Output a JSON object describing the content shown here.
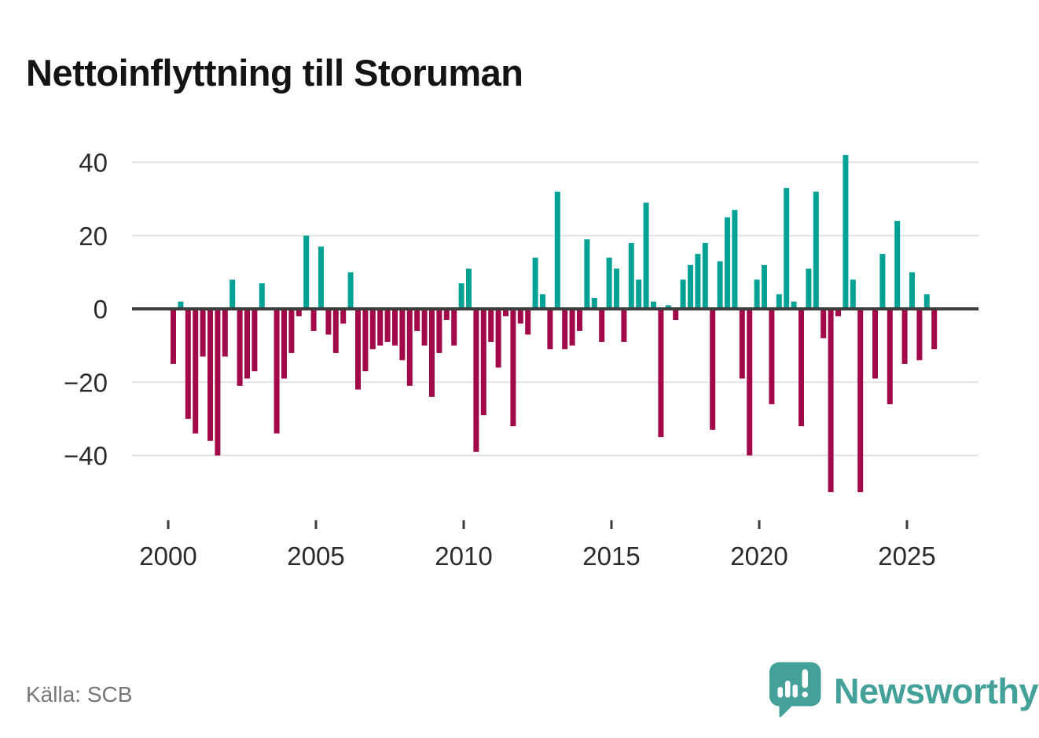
{
  "title": "Nettoinflyttning till Storuman",
  "source": "Källa: SCB",
  "branding": {
    "wordmark": "Newsworthy",
    "logo_icon": "newsworthy-speech-bubble-bar-chart-icon",
    "brand_color": "#44a19a"
  },
  "colors": {
    "positive": "#00a296",
    "negative": "#a2094a",
    "axis": "#3d3d3d",
    "gridline": "#e3e3e3",
    "tick": "#3a3a3a",
    "tick_label": "#2b2b2b",
    "source_text": "#767676"
  },
  "chart_data": {
    "type": "bar",
    "title": "Nettoinflyttning till Storuman",
    "xlabel": "",
    "ylabel": "",
    "frequency": "quarterly",
    "unit": "persons (net migration per quarter)",
    "grid": "horizontal",
    "y_ticks": [
      40,
      20,
      0,
      -20,
      -40
    ],
    "ylim": [
      -55,
      46
    ],
    "x_tick_years": [
      2000,
      2005,
      2010,
      2015,
      2020,
      2025
    ],
    "series": [
      {
        "name": "Nettoinflyttning",
        "points": [
          {
            "q": "2000Q1",
            "v": -15
          },
          {
            "q": "2000Q2",
            "v": 2
          },
          {
            "q": "2000Q3",
            "v": -30
          },
          {
            "q": "2000Q4",
            "v": -34
          },
          {
            "q": "2001Q1",
            "v": -13
          },
          {
            "q": "2001Q2",
            "v": -36
          },
          {
            "q": "2001Q3",
            "v": -40
          },
          {
            "q": "2001Q4",
            "v": -13
          },
          {
            "q": "2002Q1",
            "v": 8
          },
          {
            "q": "2002Q2",
            "v": -21
          },
          {
            "q": "2002Q3",
            "v": -19
          },
          {
            "q": "2002Q4",
            "v": -17
          },
          {
            "q": "2003Q1",
            "v": 7
          },
          {
            "q": "2003Q2",
            "v": 0
          },
          {
            "q": "2003Q3",
            "v": -34
          },
          {
            "q": "2003Q4",
            "v": -19
          },
          {
            "q": "2004Q1",
            "v": -12
          },
          {
            "q": "2004Q2",
            "v": -2
          },
          {
            "q": "2004Q3",
            "v": 20
          },
          {
            "q": "2004Q4",
            "v": -6
          },
          {
            "q": "2005Q1",
            "v": 17
          },
          {
            "q": "2005Q2",
            "v": -7
          },
          {
            "q": "2005Q3",
            "v": -12
          },
          {
            "q": "2005Q4",
            "v": -4
          },
          {
            "q": "2006Q1",
            "v": 10
          },
          {
            "q": "2006Q2",
            "v": -22
          },
          {
            "q": "2006Q3",
            "v": -17
          },
          {
            "q": "2006Q4",
            "v": -11
          },
          {
            "q": "2007Q1",
            "v": -10
          },
          {
            "q": "2007Q2",
            "v": -9
          },
          {
            "q": "2007Q3",
            "v": -10
          },
          {
            "q": "2007Q4",
            "v": -14
          },
          {
            "q": "2008Q1",
            "v": -21
          },
          {
            "q": "2008Q2",
            "v": -6
          },
          {
            "q": "2008Q3",
            "v": -10
          },
          {
            "q": "2008Q4",
            "v": -24
          },
          {
            "q": "2009Q1",
            "v": -12
          },
          {
            "q": "2009Q2",
            "v": -3
          },
          {
            "q": "2009Q3",
            "v": -10
          },
          {
            "q": "2009Q4",
            "v": 7
          },
          {
            "q": "2010Q1",
            "v": 11
          },
          {
            "q": "2010Q2",
            "v": -39
          },
          {
            "q": "2010Q3",
            "v": -29
          },
          {
            "q": "2010Q4",
            "v": -9
          },
          {
            "q": "2011Q1",
            "v": -16
          },
          {
            "q": "2011Q2",
            "v": -2
          },
          {
            "q": "2011Q3",
            "v": -32
          },
          {
            "q": "2011Q4",
            "v": -4
          },
          {
            "q": "2012Q1",
            "v": -7
          },
          {
            "q": "2012Q2",
            "v": 14
          },
          {
            "q": "2012Q3",
            "v": 4
          },
          {
            "q": "2012Q4",
            "v": -11
          },
          {
            "q": "2013Q1",
            "v": 32
          },
          {
            "q": "2013Q2",
            "v": -11
          },
          {
            "q": "2013Q3",
            "v": -10
          },
          {
            "q": "2013Q4",
            "v": -6
          },
          {
            "q": "2014Q1",
            "v": 19
          },
          {
            "q": "2014Q2",
            "v": 3
          },
          {
            "q": "2014Q3",
            "v": -9
          },
          {
            "q": "2014Q4",
            "v": 14
          },
          {
            "q": "2015Q1",
            "v": 11
          },
          {
            "q": "2015Q2",
            "v": -9
          },
          {
            "q": "2015Q3",
            "v": 18
          },
          {
            "q": "2015Q4",
            "v": 8
          },
          {
            "q": "2016Q1",
            "v": 29
          },
          {
            "q": "2016Q2",
            "v": 2
          },
          {
            "q": "2016Q3",
            "v": -35
          },
          {
            "q": "2016Q4",
            "v": 1
          },
          {
            "q": "2017Q1",
            "v": -3
          },
          {
            "q": "2017Q2",
            "v": 8
          },
          {
            "q": "2017Q3",
            "v": 12
          },
          {
            "q": "2017Q4",
            "v": 15
          },
          {
            "q": "2018Q1",
            "v": 18
          },
          {
            "q": "2018Q2",
            "v": -33
          },
          {
            "q": "2018Q3",
            "v": 13
          },
          {
            "q": "2018Q4",
            "v": 25
          },
          {
            "q": "2019Q1",
            "v": 27
          },
          {
            "q": "2019Q2",
            "v": -19
          },
          {
            "q": "2019Q3",
            "v": -40
          },
          {
            "q": "2019Q4",
            "v": 8
          },
          {
            "q": "2020Q1",
            "v": 12
          },
          {
            "q": "2020Q2",
            "v": -26
          },
          {
            "q": "2020Q3",
            "v": 4
          },
          {
            "q": "2020Q4",
            "v": 33
          },
          {
            "q": "2021Q1",
            "v": 2
          },
          {
            "q": "2021Q2",
            "v": -32
          },
          {
            "q": "2021Q3",
            "v": 11
          },
          {
            "q": "2021Q4",
            "v": 32
          },
          {
            "q": "2022Q1",
            "v": -8
          },
          {
            "q": "2022Q2",
            "v": -50
          },
          {
            "q": "2022Q3",
            "v": -2
          },
          {
            "q": "2022Q4",
            "v": 42
          },
          {
            "q": "2023Q1",
            "v": 8
          },
          {
            "q": "2023Q2",
            "v": -50
          },
          {
            "q": "2023Q3",
            "v": 0
          },
          {
            "q": "2023Q4",
            "v": -19
          },
          {
            "q": "2024Q1",
            "v": 15
          },
          {
            "q": "2024Q2",
            "v": -26
          },
          {
            "q": "2024Q3",
            "v": 24
          },
          {
            "q": "2024Q4",
            "v": -15
          },
          {
            "q": "2025Q1",
            "v": 10
          },
          {
            "q": "2025Q2",
            "v": -14
          },
          {
            "q": "2025Q3",
            "v": 4
          },
          {
            "q": "2025Q4",
            "v": -11
          }
        ]
      }
    ],
    "legend": null
  }
}
